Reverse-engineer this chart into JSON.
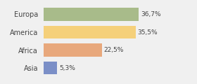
{
  "categories": [
    "Europa",
    "America",
    "Africa",
    "Asia"
  ],
  "values": [
    36.7,
    35.5,
    22.5,
    5.3
  ],
  "labels": [
    "36,7%",
    "35,5%",
    "22,5%",
    "5,3%"
  ],
  "bar_colors": [
    "#a8bb8a",
    "#f5d07a",
    "#e8a87c",
    "#7b8fc7"
  ],
  "background_color": "#f0f0f0",
  "xlim": [
    0,
    50
  ]
}
